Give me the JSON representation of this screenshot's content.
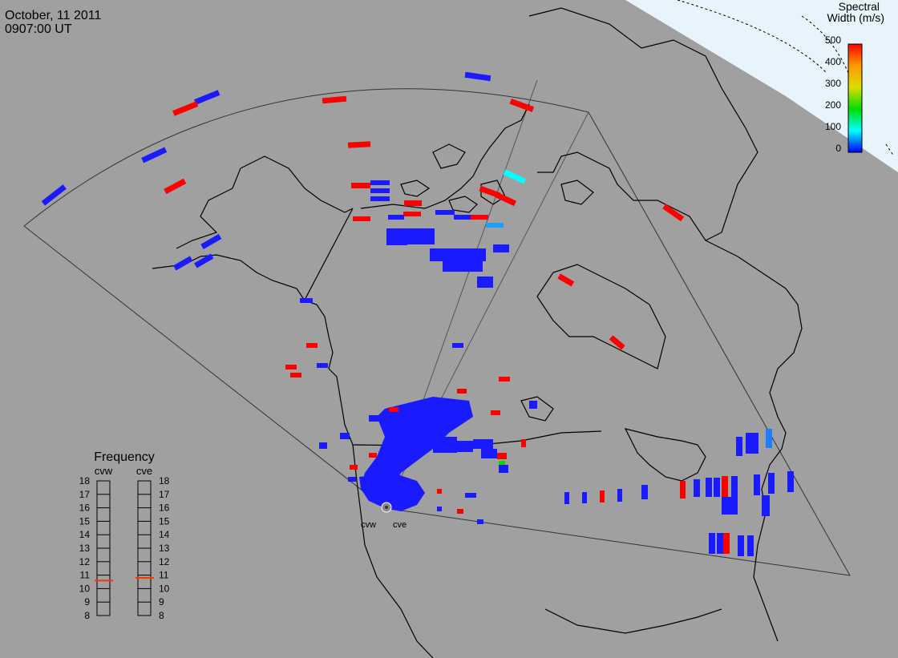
{
  "header": {
    "date": "October, 11 2011",
    "time": "0907:00 UT"
  },
  "colorbar": {
    "title_line1": "Spectral",
    "title_line2": "Width (m/s)",
    "ticks": [
      "500",
      "400",
      "300",
      "200",
      "100",
      "0"
    ],
    "colors": [
      "#ff0000",
      "#ff9900",
      "#ffff00",
      "#00dd00",
      "#00ffff",
      "#0000ff"
    ]
  },
  "stations": {
    "west": "cvw",
    "east": "cve"
  },
  "frequency_panel": {
    "title": "Frequency",
    "west_label": "cvw",
    "east_label": "cve",
    "ticks": [
      "18",
      "17",
      "16",
      "15",
      "14",
      "13",
      "12",
      "11",
      "10",
      "9",
      "8"
    ],
    "west_mhz": 10.6,
    "east_mhz": 10.8,
    "range_mhz": [
      8,
      18
    ],
    "marker_color": "#ff3300"
  },
  "colors": {
    "background": "#a0a0a0",
    "polar_region": "#e8f4fc",
    "coastline": "#000000",
    "fov_outline": "#333333",
    "low_width": "#1a1aff",
    "mid_width": "#00ffff",
    "high_width": "#ff0000"
  }
}
